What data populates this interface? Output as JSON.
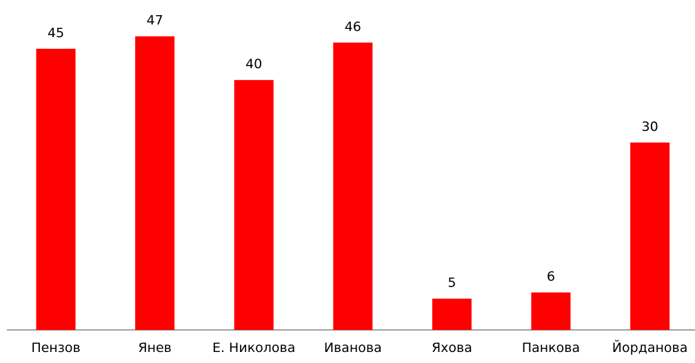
{
  "chart_data": {
    "type": "bar",
    "categories": [
      "Пензов",
      "Янев",
      "Е. Николова",
      "Иванова",
      "Яхова",
      "Панкова",
      "Йорданова"
    ],
    "values": [
      45,
      47,
      40,
      46,
      5,
      6,
      30
    ],
    "title": "",
    "xlabel": "",
    "ylabel": "",
    "ylim": [
      0,
      50
    ],
    "grid": false,
    "legend": "none",
    "data_labels": true,
    "bar_color": "#ff0000",
    "axis_color": "#808080"
  }
}
